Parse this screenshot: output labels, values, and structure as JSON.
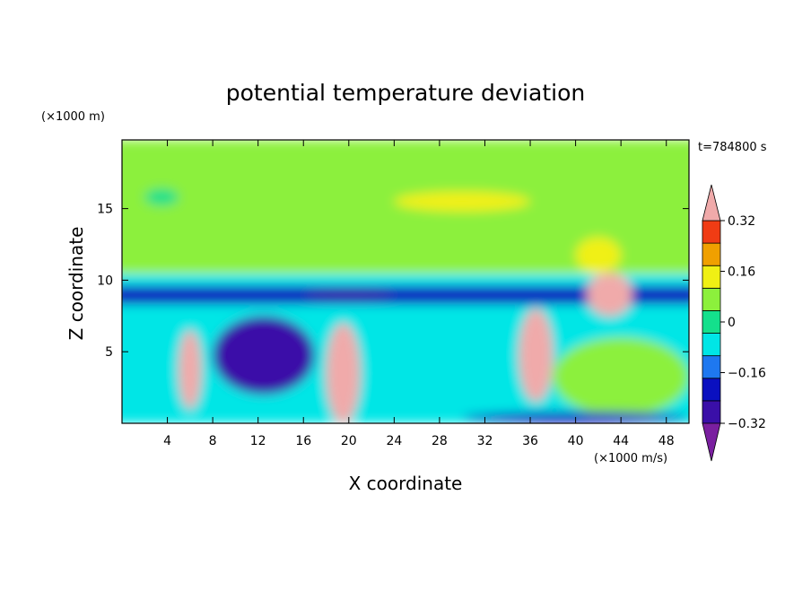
{
  "chart_data": {
    "type": "heatmap",
    "title": "potential temperature deviation",
    "xlabel": "X coordinate",
    "ylabel": "Z coordinate",
    "x_unit": "(×1000 m/s)",
    "y_unit": "(×1000 m)",
    "time_label": "t=784800 s",
    "xlim": [
      0,
      50
    ],
    "ylim": [
      0,
      19.8
    ],
    "x_ticks": [
      4,
      8,
      12,
      16,
      20,
      24,
      28,
      32,
      36,
      40,
      44,
      48
    ],
    "y_ticks": [
      5,
      10,
      15
    ],
    "colorbar": {
      "levels": [
        -0.4,
        -0.32,
        -0.24,
        -0.16,
        -0.08,
        0,
        0.08,
        0.16,
        0.24,
        0.32,
        0.4
      ],
      "labels": [
        "0.32",
        "0.16",
        "0",
        "−0.16",
        "−0.32"
      ],
      "label_values": [
        0.32,
        0.16,
        0,
        -0.16,
        -0.32
      ],
      "colors": [
        "#7a1fa0",
        "#3a0fa8",
        "#0a10c0",
        "#1e78f0",
        "#00e6e6",
        "#14e08c",
        "#8cf03c",
        "#f0f014",
        "#f0a000",
        "#f03c14",
        "#f0aaaa"
      ],
      "extend": "both"
    },
    "regions": [
      {
        "name": "upper-field",
        "level": 0.04,
        "x": [
          0,
          50
        ],
        "z": [
          10.5,
          19.8
        ]
      },
      {
        "name": "upper-yellow-band",
        "level": 0.12,
        "x": [
          24,
          36
        ],
        "z": [
          14.8,
          16.2
        ]
      },
      {
        "name": "upper-cyan-patch",
        "level": -0.08,
        "x": [
          2,
          5
        ],
        "z": [
          15.2,
          16.4
        ]
      },
      {
        "name": "tropopause-cyan",
        "level": -0.1,
        "x": [
          0,
          50
        ],
        "z": [
          9.6,
          10.4
        ]
      },
      {
        "name": "tropopause-blue",
        "level": -0.28,
        "x": [
          0,
          50
        ],
        "z": [
          8.3,
          9.6
        ]
      },
      {
        "name": "tropopause-core",
        "level": -0.36,
        "x": [
          16,
          24
        ],
        "z": [
          8.6,
          9.4
        ]
      },
      {
        "name": "lower-field",
        "level": -0.1,
        "x": [
          0,
          50
        ],
        "z": [
          0,
          8.3
        ]
      },
      {
        "name": "warm-plume-1",
        "level": 0.36,
        "x": [
          5,
          7
        ],
        "z": [
          1,
          6.5
        ]
      },
      {
        "name": "warm-plume-2",
        "level": 0.36,
        "x": [
          18,
          21
        ],
        "z": [
          0,
          7
        ]
      },
      {
        "name": "warm-plume-3",
        "level": 0.36,
        "x": [
          35,
          38
        ],
        "z": [
          1.5,
          8
        ]
      },
      {
        "name": "warm-plume-4",
        "level": 0.36,
        "x": [
          41,
          45
        ],
        "z": [
          7.5,
          10.5
        ]
      },
      {
        "name": "cold-pool",
        "level": -0.36,
        "x": [
          8,
          17
        ],
        "z": [
          2,
          7.5
        ]
      },
      {
        "name": "upper-right-yellow",
        "level": 0.14,
        "x": [
          40,
          44
        ],
        "z": [
          10.5,
          13
        ]
      },
      {
        "name": "right-lower-green",
        "level": 0.02,
        "x": [
          38,
          50
        ],
        "z": [
          0.5,
          6
        ]
      },
      {
        "name": "ground-blue",
        "level": -0.26,
        "x": [
          30,
          50
        ],
        "z": [
          0,
          0.8
        ]
      }
    ]
  }
}
